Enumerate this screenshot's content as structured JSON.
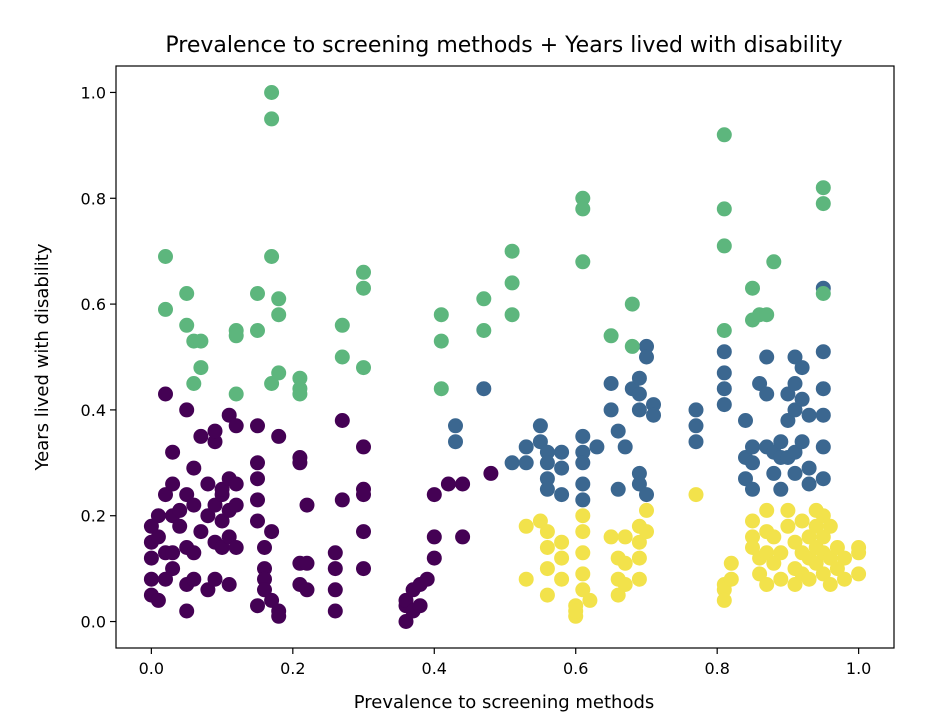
{
  "chart_data": {
    "type": "scatter",
    "title": "Prevalence to screening methods + Years lived with disability",
    "xlabel": "Prevalence to screening methods",
    "ylabel": "Years lived with disability",
    "xlim": [
      -0.05,
      1.05
    ],
    "ylim": [
      -0.05,
      1.05
    ],
    "xticks": [
      "0.0",
      "0.2",
      "0.4",
      "0.6",
      "0.8",
      "1.0"
    ],
    "yticks": [
      "0.0",
      "0.2",
      "0.4",
      "0.6",
      "0.8",
      "1.0"
    ],
    "grid": false,
    "legend": false,
    "series": [
      {
        "color": "#440154",
        "points": [
          [
            0.0,
            0.05
          ],
          [
            0.0,
            0.08
          ],
          [
            0.0,
            0.12
          ],
          [
            0.0,
            0.15
          ],
          [
            0.0,
            0.18
          ],
          [
            0.01,
            0.2
          ],
          [
            0.01,
            0.04
          ],
          [
            0.01,
            0.16
          ],
          [
            0.02,
            0.24
          ],
          [
            0.02,
            0.13
          ],
          [
            0.02,
            0.43
          ],
          [
            0.02,
            0.08
          ],
          [
            0.03,
            0.26
          ],
          [
            0.03,
            0.2
          ],
          [
            0.03,
            0.13
          ],
          [
            0.03,
            0.32
          ],
          [
            0.03,
            0.1
          ],
          [
            0.04,
            0.21
          ],
          [
            0.04,
            0.18
          ],
          [
            0.05,
            0.24
          ],
          [
            0.05,
            0.14
          ],
          [
            0.05,
            0.07
          ],
          [
            0.05,
            0.02
          ],
          [
            0.05,
            0.4
          ],
          [
            0.06,
            0.29
          ],
          [
            0.06,
            0.22
          ],
          [
            0.06,
            0.13
          ],
          [
            0.06,
            0.08
          ],
          [
            0.07,
            0.17
          ],
          [
            0.07,
            0.35
          ],
          [
            0.08,
            0.26
          ],
          [
            0.08,
            0.2
          ],
          [
            0.08,
            0.06
          ],
          [
            0.09,
            0.34
          ],
          [
            0.09,
            0.22
          ],
          [
            0.09,
            0.15
          ],
          [
            0.09,
            0.36
          ],
          [
            0.09,
            0.08
          ],
          [
            0.1,
            0.24
          ],
          [
            0.1,
            0.19
          ],
          [
            0.1,
            0.14
          ],
          [
            0.1,
            0.25
          ],
          [
            0.11,
            0.39
          ],
          [
            0.11,
            0.27
          ],
          [
            0.11,
            0.21
          ],
          [
            0.11,
            0.16
          ],
          [
            0.11,
            0.07
          ],
          [
            0.12,
            0.37
          ],
          [
            0.12,
            0.26
          ],
          [
            0.12,
            0.22
          ],
          [
            0.12,
            0.14
          ],
          [
            0.15,
            0.3
          ],
          [
            0.15,
            0.27
          ],
          [
            0.15,
            0.23
          ],
          [
            0.15,
            0.19
          ],
          [
            0.15,
            0.03
          ],
          [
            0.15,
            0.37
          ],
          [
            0.16,
            0.14
          ],
          [
            0.16,
            0.1
          ],
          [
            0.16,
            0.08
          ],
          [
            0.16,
            0.06
          ],
          [
            0.17,
            0.17
          ],
          [
            0.17,
            0.04
          ],
          [
            0.18,
            0.35
          ],
          [
            0.18,
            0.02
          ],
          [
            0.18,
            0.01
          ],
          [
            0.21,
            0.3
          ],
          [
            0.21,
            0.31
          ],
          [
            0.21,
            0.11
          ],
          [
            0.21,
            0.07
          ],
          [
            0.22,
            0.06
          ],
          [
            0.22,
            0.22
          ],
          [
            0.22,
            0.11
          ],
          [
            0.26,
            0.13
          ],
          [
            0.26,
            0.1
          ],
          [
            0.26,
            0.06
          ],
          [
            0.26,
            0.02
          ],
          [
            0.27,
            0.23
          ],
          [
            0.27,
            0.38
          ],
          [
            0.3,
            0.33
          ],
          [
            0.3,
            0.25
          ],
          [
            0.3,
            0.24
          ],
          [
            0.3,
            0.17
          ],
          [
            0.3,
            0.1
          ],
          [
            0.36,
            0.0
          ],
          [
            0.36,
            0.03
          ],
          [
            0.36,
            0.04
          ],
          [
            0.37,
            0.06
          ],
          [
            0.37,
            0.02
          ],
          [
            0.38,
            0.07
          ],
          [
            0.38,
            0.03
          ],
          [
            0.39,
            0.08
          ],
          [
            0.4,
            0.24
          ],
          [
            0.4,
            0.16
          ],
          [
            0.4,
            0.12
          ],
          [
            0.42,
            0.26
          ],
          [
            0.44,
            0.26
          ],
          [
            0.44,
            0.16
          ],
          [
            0.48,
            0.28
          ]
        ]
      },
      {
        "color": "#3b6790",
        "points": [
          [
            0.43,
            0.37
          ],
          [
            0.43,
            0.34
          ],
          [
            0.47,
            0.44
          ],
          [
            0.51,
            0.3
          ],
          [
            0.53,
            0.3
          ],
          [
            0.53,
            0.33
          ],
          [
            0.55,
            0.34
          ],
          [
            0.55,
            0.37
          ],
          [
            0.56,
            0.32
          ],
          [
            0.56,
            0.3
          ],
          [
            0.56,
            0.27
          ],
          [
            0.56,
            0.25
          ],
          [
            0.58,
            0.24
          ],
          [
            0.58,
            0.32
          ],
          [
            0.58,
            0.29
          ],
          [
            0.61,
            0.35
          ],
          [
            0.61,
            0.32
          ],
          [
            0.61,
            0.3
          ],
          [
            0.61,
            0.26
          ],
          [
            0.61,
            0.23
          ],
          [
            0.63,
            0.33
          ],
          [
            0.65,
            0.45
          ],
          [
            0.65,
            0.4
          ],
          [
            0.66,
            0.36
          ],
          [
            0.66,
            0.25
          ],
          [
            0.67,
            0.33
          ],
          [
            0.68,
            0.44
          ],
          [
            0.69,
            0.46
          ],
          [
            0.69,
            0.43
          ],
          [
            0.69,
            0.4
          ],
          [
            0.69,
            0.28
          ],
          [
            0.69,
            0.26
          ],
          [
            0.7,
            0.24
          ],
          [
            0.7,
            0.52
          ],
          [
            0.7,
            0.5
          ],
          [
            0.71,
            0.41
          ],
          [
            0.71,
            0.39
          ],
          [
            0.77,
            0.4
          ],
          [
            0.77,
            0.34
          ],
          [
            0.77,
            0.37
          ],
          [
            0.81,
            0.44
          ],
          [
            0.81,
            0.41
          ],
          [
            0.81,
            0.47
          ],
          [
            0.81,
            0.51
          ],
          [
            0.84,
            0.38
          ],
          [
            0.84,
            0.31
          ],
          [
            0.84,
            0.27
          ],
          [
            0.85,
            0.33
          ],
          [
            0.85,
            0.3
          ],
          [
            0.85,
            0.25
          ],
          [
            0.86,
            0.45
          ],
          [
            0.87,
            0.5
          ],
          [
            0.87,
            0.43
          ],
          [
            0.87,
            0.33
          ],
          [
            0.88,
            0.32
          ],
          [
            0.88,
            0.28
          ],
          [
            0.89,
            0.34
          ],
          [
            0.89,
            0.31
          ],
          [
            0.89,
            0.25
          ],
          [
            0.9,
            0.43
          ],
          [
            0.9,
            0.38
          ],
          [
            0.9,
            0.31
          ],
          [
            0.91,
            0.5
          ],
          [
            0.91,
            0.45
          ],
          [
            0.91,
            0.4
          ],
          [
            0.91,
            0.32
          ],
          [
            0.91,
            0.28
          ],
          [
            0.92,
            0.48
          ],
          [
            0.92,
            0.42
          ],
          [
            0.92,
            0.34
          ],
          [
            0.93,
            0.39
          ],
          [
            0.93,
            0.29
          ],
          [
            0.93,
            0.26
          ],
          [
            0.95,
            0.63
          ],
          [
            0.95,
            0.51
          ],
          [
            0.95,
            0.44
          ],
          [
            0.95,
            0.39
          ],
          [
            0.95,
            0.33
          ],
          [
            0.95,
            0.27
          ]
        ]
      },
      {
        "color": "#5db67d",
        "points": [
          [
            0.02,
            0.69
          ],
          [
            0.02,
            0.59
          ],
          [
            0.05,
            0.62
          ],
          [
            0.05,
            0.56
          ],
          [
            0.06,
            0.53
          ],
          [
            0.06,
            0.45
          ],
          [
            0.07,
            0.48
          ],
          [
            0.07,
            0.53
          ],
          [
            0.12,
            0.55
          ],
          [
            0.12,
            0.54
          ],
          [
            0.12,
            0.43
          ],
          [
            0.15,
            0.62
          ],
          [
            0.15,
            0.55
          ],
          [
            0.17,
            1.0
          ],
          [
            0.17,
            0.95
          ],
          [
            0.17,
            0.69
          ],
          [
            0.17,
            0.45
          ],
          [
            0.18,
            0.61
          ],
          [
            0.18,
            0.58
          ],
          [
            0.18,
            0.47
          ],
          [
            0.21,
            0.46
          ],
          [
            0.21,
            0.43
          ],
          [
            0.21,
            0.44
          ],
          [
            0.27,
            0.56
          ],
          [
            0.27,
            0.5
          ],
          [
            0.3,
            0.66
          ],
          [
            0.3,
            0.63
          ],
          [
            0.3,
            0.48
          ],
          [
            0.41,
            0.58
          ],
          [
            0.41,
            0.53
          ],
          [
            0.41,
            0.44
          ],
          [
            0.47,
            0.61
          ],
          [
            0.47,
            0.55
          ],
          [
            0.51,
            0.7
          ],
          [
            0.51,
            0.64
          ],
          [
            0.51,
            0.58
          ],
          [
            0.61,
            0.8
          ],
          [
            0.61,
            0.78
          ],
          [
            0.61,
            0.68
          ],
          [
            0.65,
            0.54
          ],
          [
            0.68,
            0.6
          ],
          [
            0.68,
            0.52
          ],
          [
            0.81,
            0.92
          ],
          [
            0.81,
            0.78
          ],
          [
            0.81,
            0.71
          ],
          [
            0.81,
            0.55
          ],
          [
            0.85,
            0.63
          ],
          [
            0.85,
            0.57
          ],
          [
            0.86,
            0.58
          ],
          [
            0.87,
            0.58
          ],
          [
            0.88,
            0.68
          ],
          [
            0.95,
            0.82
          ],
          [
            0.95,
            0.79
          ],
          [
            0.95,
            0.62
          ]
        ]
      },
      {
        "color": "#f2e24b",
        "points": [
          [
            0.53,
            0.18
          ],
          [
            0.53,
            0.08
          ],
          [
            0.55,
            0.19
          ],
          [
            0.56,
            0.17
          ],
          [
            0.56,
            0.14
          ],
          [
            0.56,
            0.1
          ],
          [
            0.56,
            0.05
          ],
          [
            0.58,
            0.15
          ],
          [
            0.58,
            0.12
          ],
          [
            0.58,
            0.08
          ],
          [
            0.6,
            0.03
          ],
          [
            0.6,
            0.01
          ],
          [
            0.6,
            0.02
          ],
          [
            0.61,
            0.2
          ],
          [
            0.61,
            0.17
          ],
          [
            0.61,
            0.13
          ],
          [
            0.61,
            0.09
          ],
          [
            0.61,
            0.06
          ],
          [
            0.62,
            0.04
          ],
          [
            0.65,
            0.16
          ],
          [
            0.66,
            0.12
          ],
          [
            0.66,
            0.08
          ],
          [
            0.66,
            0.05
          ],
          [
            0.67,
            0.16
          ],
          [
            0.67,
            0.11
          ],
          [
            0.67,
            0.07
          ],
          [
            0.69,
            0.18
          ],
          [
            0.69,
            0.15
          ],
          [
            0.69,
            0.12
          ],
          [
            0.69,
            0.08
          ],
          [
            0.7,
            0.21
          ],
          [
            0.7,
            0.17
          ],
          [
            0.77,
            0.24
          ],
          [
            0.81,
            0.07
          ],
          [
            0.81,
            0.06
          ],
          [
            0.81,
            0.04
          ],
          [
            0.82,
            0.11
          ],
          [
            0.82,
            0.08
          ],
          [
            0.85,
            0.19
          ],
          [
            0.85,
            0.16
          ],
          [
            0.85,
            0.14
          ],
          [
            0.86,
            0.12
          ],
          [
            0.86,
            0.09
          ],
          [
            0.87,
            0.21
          ],
          [
            0.87,
            0.17
          ],
          [
            0.87,
            0.13
          ],
          [
            0.87,
            0.07
          ],
          [
            0.88,
            0.16
          ],
          [
            0.88,
            0.11
          ],
          [
            0.89,
            0.13
          ],
          [
            0.89,
            0.08
          ],
          [
            0.9,
            0.21
          ],
          [
            0.9,
            0.18
          ],
          [
            0.91,
            0.15
          ],
          [
            0.91,
            0.1
          ],
          [
            0.91,
            0.07
          ],
          [
            0.92,
            0.19
          ],
          [
            0.92,
            0.13
          ],
          [
            0.92,
            0.09
          ],
          [
            0.93,
            0.16
          ],
          [
            0.93,
            0.12
          ],
          [
            0.93,
            0.08
          ],
          [
            0.94,
            0.21
          ],
          [
            0.94,
            0.18
          ],
          [
            0.94,
            0.14
          ],
          [
            0.94,
            0.11
          ],
          [
            0.95,
            0.2
          ],
          [
            0.95,
            0.16
          ],
          [
            0.95,
            0.13
          ],
          [
            0.95,
            0.09
          ],
          [
            0.96,
            0.18
          ],
          [
            0.96,
            0.12
          ],
          [
            0.96,
            0.07
          ],
          [
            0.97,
            0.14
          ],
          [
            0.97,
            0.1
          ],
          [
            0.98,
            0.12
          ],
          [
            0.98,
            0.08
          ],
          [
            1.0,
            0.14
          ],
          [
            1.0,
            0.13
          ],
          [
            1.0,
            0.09
          ]
        ]
      }
    ]
  }
}
